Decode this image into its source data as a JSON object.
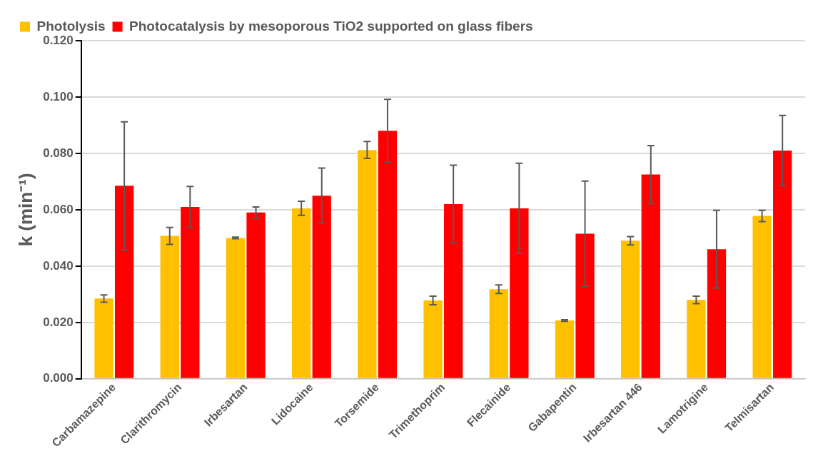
{
  "chart_data": {
    "type": "bar",
    "ylabel": "k (min⁻¹)",
    "categories": [
      "Carbamazepine",
      "Clarithromycin",
      "Irbesartan",
      "Lidocaine",
      "Torsemide",
      "Trimethoprim",
      "Flecainide",
      "Gabapentin",
      "Irbesartan 446",
      "Lamotrigine",
      "Telmisartan"
    ],
    "series": [
      {
        "name": "Photolysis",
        "color": "#ffc000",
        "values": [
          0.0285,
          0.0507,
          0.05,
          0.0605,
          0.0812,
          0.0278,
          0.0318,
          0.0207,
          0.049,
          0.028,
          0.0578
        ],
        "errors": [
          0.0013,
          0.003,
          0.0003,
          0.0025,
          0.003,
          0.0015,
          0.0015,
          0.0003,
          0.0015,
          0.0013,
          0.002
        ]
      },
      {
        "name": "Photocatalysis by mesoporous TiO2 supported on glass fibers",
        "color": "#ff0000",
        "values": [
          0.0685,
          0.061,
          0.059,
          0.065,
          0.088,
          0.062,
          0.0605,
          0.0515,
          0.0725,
          0.046,
          0.081
        ],
        "errors": [
          0.0227,
          0.0073,
          0.002,
          0.0098,
          0.0112,
          0.0138,
          0.016,
          0.0187,
          0.0103,
          0.0138,
          0.0125
        ]
      }
    ],
    "ylim": [
      0,
      0.12
    ],
    "yticks": [
      {
        "value": 0,
        "label": "0.000"
      },
      {
        "value": 0.02,
        "label": "0.020"
      },
      {
        "value": 0.04,
        "label": "0.040"
      },
      {
        "value": 0.06,
        "label": "0.060"
      },
      {
        "value": 0.08,
        "label": "0.080"
      },
      {
        "value": 0.1,
        "label": "0.100"
      },
      {
        "value": 0.12,
        "label": "0.120"
      }
    ],
    "grid": "y",
    "legend": "top left"
  }
}
